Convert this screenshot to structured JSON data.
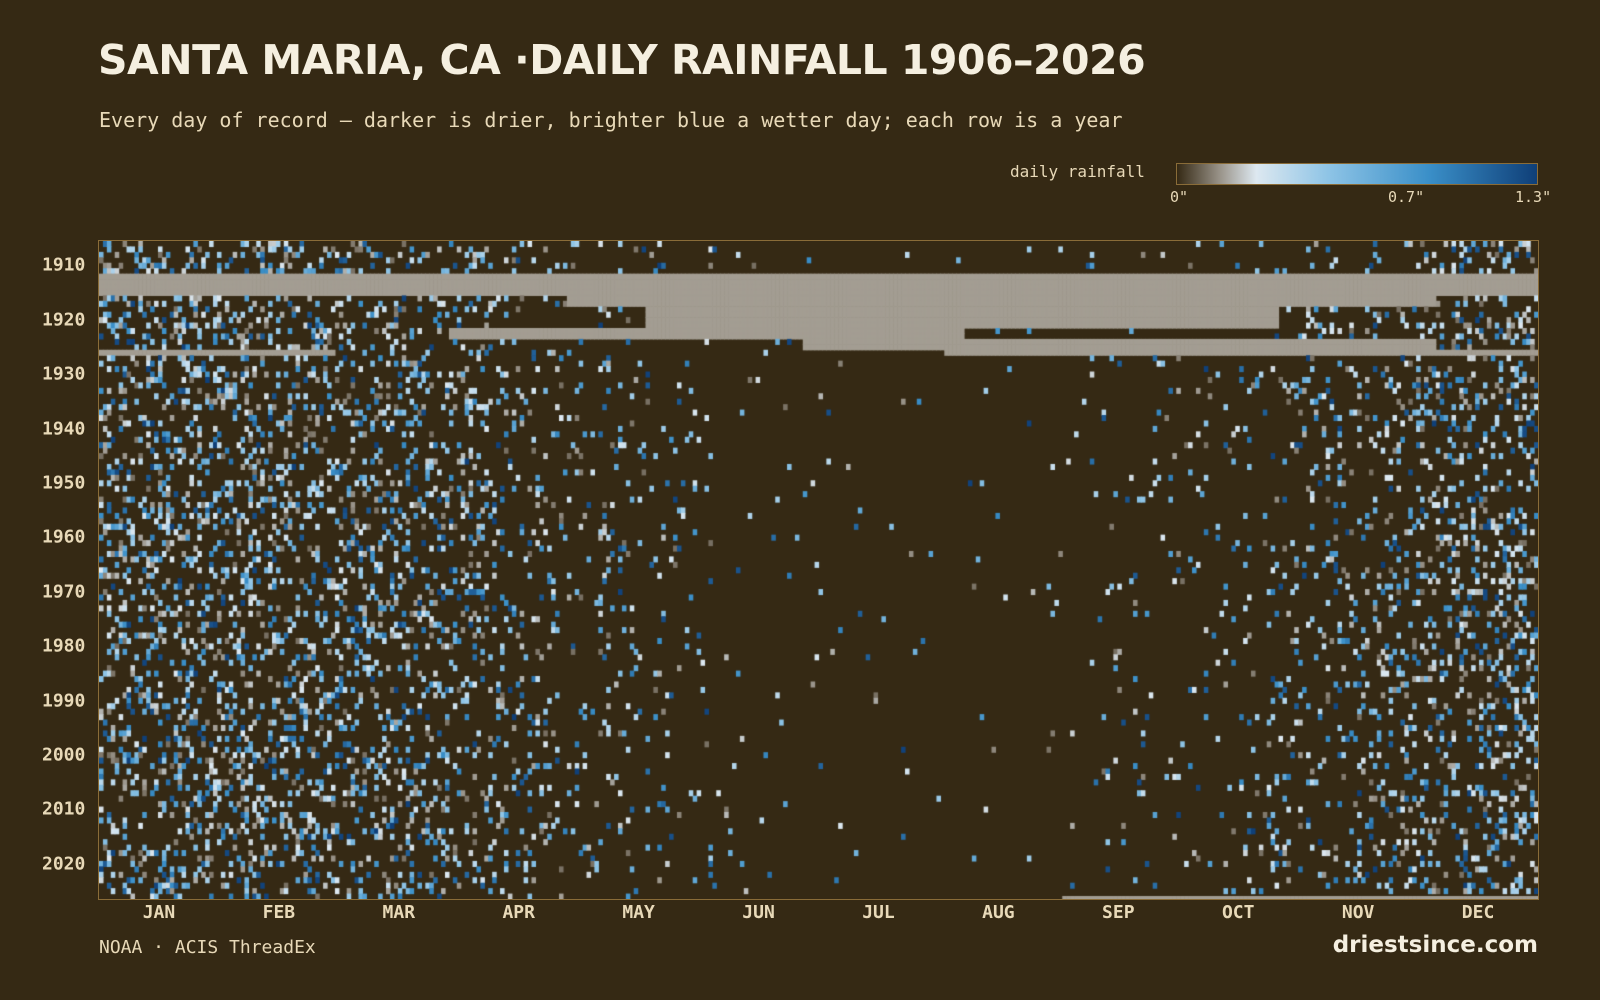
{
  "title": "SANTA MARIA, CA ·DAILY RAINFALL 1906–2026",
  "subtitle": "Every day of record — darker is drier, brighter blue a wetter day; each row is a year",
  "legend": {
    "label": "daily rainfall",
    "ticks": [
      "0\"",
      "0.7\"",
      "1.3\""
    ],
    "tick_values": [
      0,
      0.7,
      1.3
    ],
    "colors": [
      "#352914",
      "#9a948a",
      "#dde8f0",
      "#8ec4e6",
      "#3a8fc8",
      "#0f3f78"
    ]
  },
  "source": "NOAA · ACIS ThreadEx",
  "brand": "driestsince.com",
  "colors": {
    "background": "#352914",
    "missing": "#a39d92",
    "border": "#8a6c38",
    "text": "#e8d9b8"
  },
  "chart_data": {
    "type": "heatmap",
    "title": "SANTA MARIA, CA ·DAILY RAINFALL 1906–2026",
    "x_categories": [
      "JAN",
      "FEB",
      "MAR",
      "APR",
      "MAY",
      "JUN",
      "JUL",
      "AUG",
      "SEP",
      "OCT",
      "NOV",
      "DEC"
    ],
    "y_ticks": [
      1910,
      1920,
      1930,
      1940,
      1950,
      1960,
      1970,
      1980,
      1990,
      2000,
      2010,
      2020
    ],
    "year_range": [
      1906,
      2026
    ],
    "day_range": [
      1,
      366
    ],
    "value_range": [
      0,
      1.3
    ],
    "units": "inches",
    "missing_data": [
      {
        "years": [
          1912,
          1915
        ],
        "days": [
          1,
          366
        ]
      },
      {
        "years": [
          1916,
          1917
        ],
        "days": [
          120,
          340
        ]
      },
      {
        "years": [
          1918,
          1921
        ],
        "days": [
          140,
          300
        ]
      },
      {
        "years": [
          1922,
          1923
        ],
        "days": [
          90,
          220
        ]
      },
      {
        "years": [
          1924,
          1925
        ],
        "days": [
          180,
          340
        ]
      },
      {
        "years": [
          1926,
          1926
        ],
        "days": [
          1,
          60
        ]
      },
      {
        "years": [
          1926,
          1926
        ],
        "days": [
          216,
          366
        ]
      }
    ],
    "monthly_rain_day_frequency": [
      0.24,
      0.23,
      0.21,
      0.12,
      0.05,
      0.015,
      0.008,
      0.01,
      0.025,
      0.05,
      0.13,
      0.22
    ]
  }
}
